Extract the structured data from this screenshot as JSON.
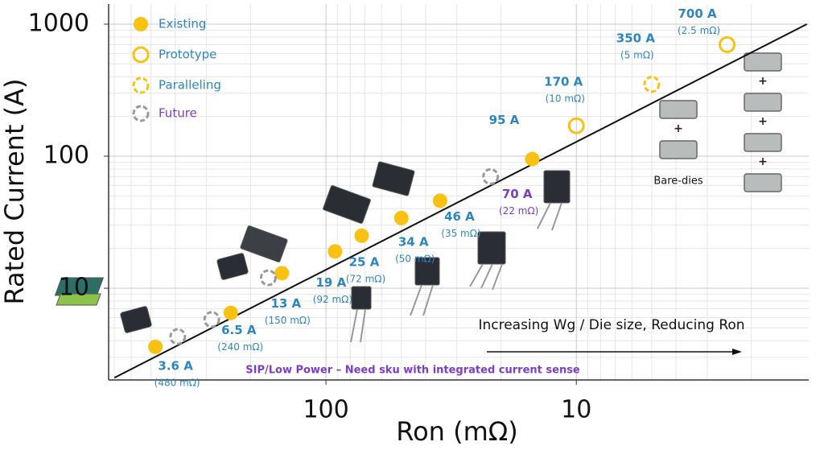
{
  "chart_data": {
    "type": "scatter",
    "xlabel": "Ron (mΩ)",
    "ylabel": "Rated Current (A)",
    "xscale": "log",
    "yscale": "log",
    "xlim": [
      738,
      1.18
    ],
    "ylim": [
      2.02,
      1420
    ],
    "xticks": [
      100,
      10
    ],
    "yticks": [
      10,
      100,
      1000
    ],
    "xticks_minor": [
      700,
      600,
      500,
      400,
      300,
      200,
      90,
      80,
      70,
      60,
      50,
      40,
      30,
      20,
      9,
      8,
      7,
      6,
      5,
      4,
      3,
      2
    ],
    "yticks_minor": [
      3,
      4,
      5,
      6,
      7,
      8,
      9,
      20,
      30,
      40,
      50,
      60,
      70,
      80,
      90,
      200,
      300,
      400,
      500,
      600,
      700,
      800,
      900
    ],
    "grid": true,
    "legend": "upper left",
    "series": [
      {
        "name": "Existing",
        "color": "#f9c112",
        "marker": "filled",
        "x": [
          480,
          240,
          150,
          92,
          72,
          50,
          35,
          15
        ],
        "values": [
          3.6,
          6.5,
          13,
          19,
          25,
          34,
          46,
          95
        ],
        "point_labels": [
          "3.6 A",
          "6.5 A",
          "13 A",
          "19 A",
          "25 A",
          "34 A",
          "46 A",
          "95 A"
        ],
        "point_sublabels": [
          "(480 mΩ)",
          "(240 mΩ)",
          "(150 mΩ)",
          "(92 mΩ)",
          "(72 mΩ)",
          "(50 mΩ)",
          "(35 mΩ)",
          null
        ]
      },
      {
        "name": "Prototype",
        "color": "#f9c112",
        "marker": "ring",
        "x": [
          10,
          2.5
        ],
        "values": [
          170,
          700
        ],
        "point_labels": [
          "170 A",
          "700 A"
        ],
        "point_sublabels": [
          "(10 mΩ)",
          "(2.5 mΩ)"
        ]
      },
      {
        "name": "Paralleling",
        "color": "#f9c112",
        "marker": "dashed-ring",
        "x": [
          5
        ],
        "values": [
          350
        ],
        "point_labels": [
          "350 A"
        ],
        "point_sublabels": [
          "(5 mΩ)"
        ]
      },
      {
        "name": "Future",
        "color": "#9a9a9a",
        "marker": "dashed-ring",
        "x": [
          391,
          286,
          170,
          22
        ],
        "values": [
          4.3,
          5.8,
          12,
          70
        ],
        "point_labels": [
          null,
          null,
          null,
          "70 A"
        ],
        "point_sublabels": [
          null,
          null,
          null,
          "(22 mΩ)"
        ]
      }
    ],
    "trend_line": {
      "color": "#111111",
      "x": [
        700,
        1.2
      ],
      "values": [
        2.1,
        1000
      ]
    },
    "annotations": [
      "Increasing Wg / Die size, Reducing Ron",
      "SIP/Low Power – Need sku with integrated current sense",
      "Bare-dies"
    ]
  }
}
